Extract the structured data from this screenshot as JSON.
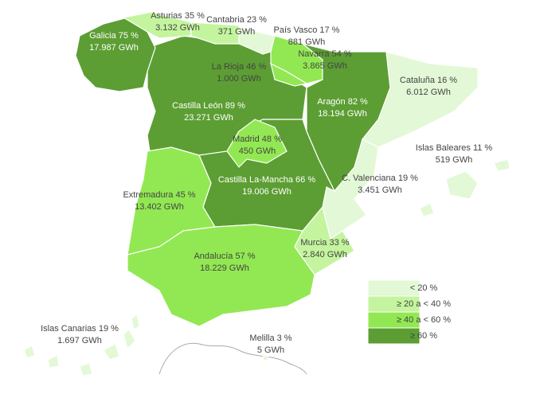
{
  "regions": [
    {
      "name": "Galicia 75 %",
      "energy": "17.987 GWh",
      "color": "#5c9e33"
    },
    {
      "name": "Asturias 35 %",
      "energy": "3.132 GWh",
      "color": "#c4f59e"
    },
    {
      "name": "Cantabria 23 %",
      "energy": "371 GWh",
      "color": "#c4f59e"
    },
    {
      "name": "País Vasco 17 %",
      "energy": "881 GWh",
      "color": "#e3f8d6"
    },
    {
      "name": "Navarra 54 %",
      "energy": "3.865 GWh",
      "color": "#92e852"
    },
    {
      "name": "La Rioja 46 %",
      "energy": "1.000 GWh",
      "color": "#92e852"
    },
    {
      "name": "Castilla León 89 %",
      "energy": "23.271 GWh",
      "color": "#5c9e33"
    },
    {
      "name": "Aragón 82 %",
      "energy": "18.194 GWh",
      "color": "#5c9e33"
    },
    {
      "name": "Cataluña 16 %",
      "energy": "6.012 GWh",
      "color": "#e3f8d6"
    },
    {
      "name": "Madrid 48 %",
      "energy": "450 GWh",
      "color": "#92e852"
    },
    {
      "name": "Castilla La-Mancha 66 %",
      "energy": "19.006 GWh",
      "color": "#5c9e33"
    },
    {
      "name": "C. Valenciana 19 %",
      "energy": "3.451 GWh",
      "color": "#e3f8d6"
    },
    {
      "name": "Extremadura 45 %",
      "energy": "13.402 GWh",
      "color": "#92e852"
    },
    {
      "name": "Andalucía 57 %",
      "energy": "18.229 GWh",
      "color": "#92e852"
    },
    {
      "name": "Murcia 33 %",
      "energy": "2.840 GWh",
      "color": "#c4f59e"
    },
    {
      "name": "Islas Baleares 11 %",
      "energy": "519 GWh",
      "color": "#e3f8d6"
    },
    {
      "name": "Islas Canarias 19 %",
      "energy": "1.697 GWh",
      "color": "#e3f8d6"
    },
    {
      "name": "Melilla 3 %",
      "energy": "5 GWh",
      "color": "#e3f8d6"
    }
  ],
  "legend": [
    {
      "label": "<  20 %",
      "color": "#e3f8d6"
    },
    {
      "label": "≥ 20 a < 40 %",
      "color": "#c4f59e"
    },
    {
      "label": "≥ 40 a < 60 %",
      "color": "#92e852"
    },
    {
      "label": "≥ 60 %",
      "color": "#5c9e33"
    }
  ]
}
